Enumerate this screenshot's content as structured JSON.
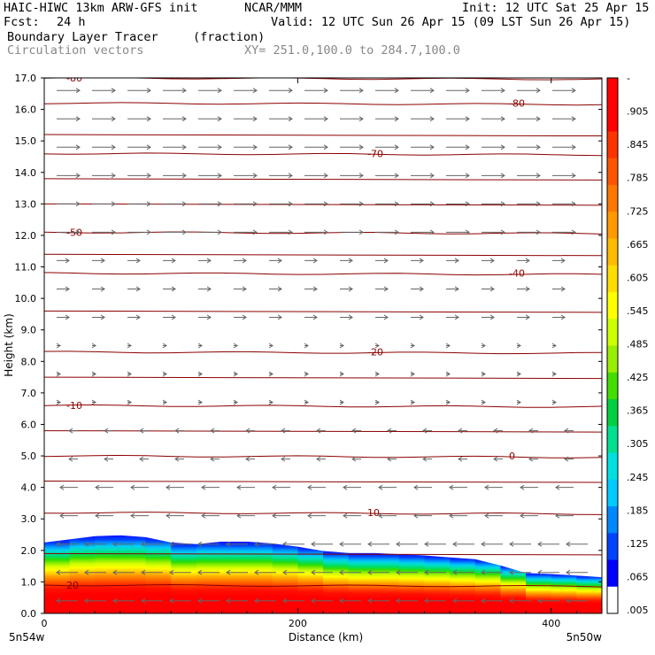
{
  "header": {
    "model": "HAIC-HIWC 13km ARW-GFS init",
    "org": "NCAR/MMM",
    "init": "Init: 12 UTC Sat 25 Apr 15",
    "fcst_label": "Fcst:",
    "fcst_value": "24 h",
    "valid": "Valid: 12 UTC Sun 26 Apr 15 (09 LST Sun 26 Apr 15)",
    "field_name": "Boundary Layer Tracer",
    "field_units": "(fraction)",
    "vectors_label": "Circulation vectors",
    "xy_label": "XY= 251.0,100.0 to 284.7,100.0"
  },
  "colors": {
    "contour": "#8b0000",
    "vector": "#666666",
    "ramp": [
      "#ffffff",
      "#0000ff",
      "#0044ff",
      "#0088ff",
      "#00ccff",
      "#00e0e0",
      "#00e090",
      "#00d040",
      "#44dd00",
      "#99ee00",
      "#ccff00",
      "#ffff00",
      "#ffdd00",
      "#ffbb00",
      "#ff9900",
      "#ff7700",
      "#ff5500",
      "#ff3300",
      "#ff0000",
      "#ff0000"
    ]
  },
  "chart_data": {
    "type": "heatmap",
    "title": "Boundary Layer Tracer",
    "xlabel": "Distance (km)",
    "ylabel": "Height (km)",
    "xlim": [
      0,
      440
    ],
    "ylim": [
      0,
      17
    ],
    "x_ticks": [
      0,
      200,
      400
    ],
    "x_tick_labels": [
      "0",
      "200",
      "400"
    ],
    "y_ticks": [
      0,
      1,
      2,
      3,
      4,
      5,
      6,
      7,
      8,
      9,
      10,
      11,
      12,
      13,
      14,
      15,
      16,
      17
    ],
    "y_tick_labels": [
      "0.0",
      "1.0",
      "2.0",
      "3.0",
      "4.0",
      "5.0",
      "6.0",
      "7.0",
      "8.0",
      "9.0",
      "10.0",
      "11.0",
      "12.0",
      "13.0",
      "14.0",
      "15.0",
      "16.0",
      "17.0"
    ],
    "endpoint_labels": [
      "5n54w",
      "5n50w"
    ],
    "colorbar": {
      "labels": [
        "-",
        ".905",
        ".845",
        ".785",
        ".725",
        ".665",
        ".605",
        ".545",
        ".485",
        ".425",
        ".365",
        ".305",
        ".245",
        ".185",
        ".125",
        ".065",
        ".005"
      ]
    },
    "tracer_top": {
      "x": [
        0,
        20,
        40,
        60,
        80,
        100,
        120,
        140,
        160,
        180,
        200,
        220,
        240,
        260,
        280,
        300,
        320,
        340,
        360,
        380,
        400,
        420,
        440
      ],
      "top": [
        2.25,
        2.35,
        2.45,
        2.48,
        2.42,
        2.25,
        2.2,
        2.28,
        2.28,
        2.22,
        2.12,
        1.98,
        1.92,
        1.92,
        1.88,
        1.84,
        1.78,
        1.72,
        1.52,
        1.28,
        1.25,
        1.2,
        1.15
      ]
    },
    "temperature_contours": [
      {
        "label": "20",
        "height": 0.9
      },
      {
        "label": "10",
        "height": 3.2
      },
      {
        "label": "0",
        "height": 5.0
      },
      {
        "label": "-10",
        "height": 6.6
      },
      {
        "label": "-20",
        "height": 8.3
      },
      {
        "label": "-40",
        "height": 10.8
      },
      {
        "label": "-50",
        "height": 12.1
      },
      {
        "label": "-70",
        "height": 14.6
      },
      {
        "label": "-80",
        "height": 16.2
      },
      {
        "label": "-80",
        "height": 17.0
      }
    ]
  }
}
